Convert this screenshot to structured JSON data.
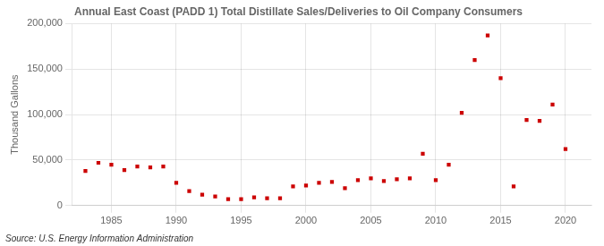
{
  "chart_data": {
    "type": "scatter",
    "title": "Annual East Coast (PADD 1) Total Distillate Sales/Deliveries to Oil Company Consumers",
    "ylabel": "Thousand Gallons",
    "annotations": [
      "Source: U.S. Energy Information Administration"
    ],
    "x": [
      1983,
      1984,
      1985,
      1986,
      1987,
      1988,
      1989,
      1990,
      1991,
      1992,
      1993,
      1994,
      1995,
      1996,
      1997,
      1998,
      1999,
      2000,
      2001,
      2002,
      2003,
      2004,
      2005,
      2006,
      2007,
      2008,
      2009,
      2010,
      2011,
      2012,
      2013,
      2014,
      2015,
      2016,
      2017,
      2018,
      2019,
      2020
    ],
    "values": [
      38000,
      47000,
      45000,
      39000,
      43000,
      42000,
      43000,
      25000,
      16000,
      12000,
      10000,
      7000,
      7000,
      9000,
      8000,
      8000,
      21000,
      22000,
      25000,
      26000,
      19000,
      28000,
      30000,
      27000,
      29000,
      30000,
      57000,
      28000,
      45000,
      102000,
      160000,
      187000,
      140000,
      21000,
      94000,
      93000,
      111000,
      62000
    ],
    "color": "#cc0000",
    "marker": "square",
    "xlim": [
      1982,
      2022
    ],
    "xticks": [
      1985,
      1990,
      1995,
      2000,
      2005,
      2010,
      2015,
      2020
    ],
    "ylim": [
      0,
      200000
    ],
    "yticks": [
      0,
      {
        "value": 50000,
        "label": "50,000"
      },
      {
        "value": 100000,
        "label": "100,000"
      },
      {
        "value": 150000,
        "label": "150,000"
      },
      {
        "value": 200000,
        "label": "200,000"
      }
    ],
    "grid": true
  }
}
